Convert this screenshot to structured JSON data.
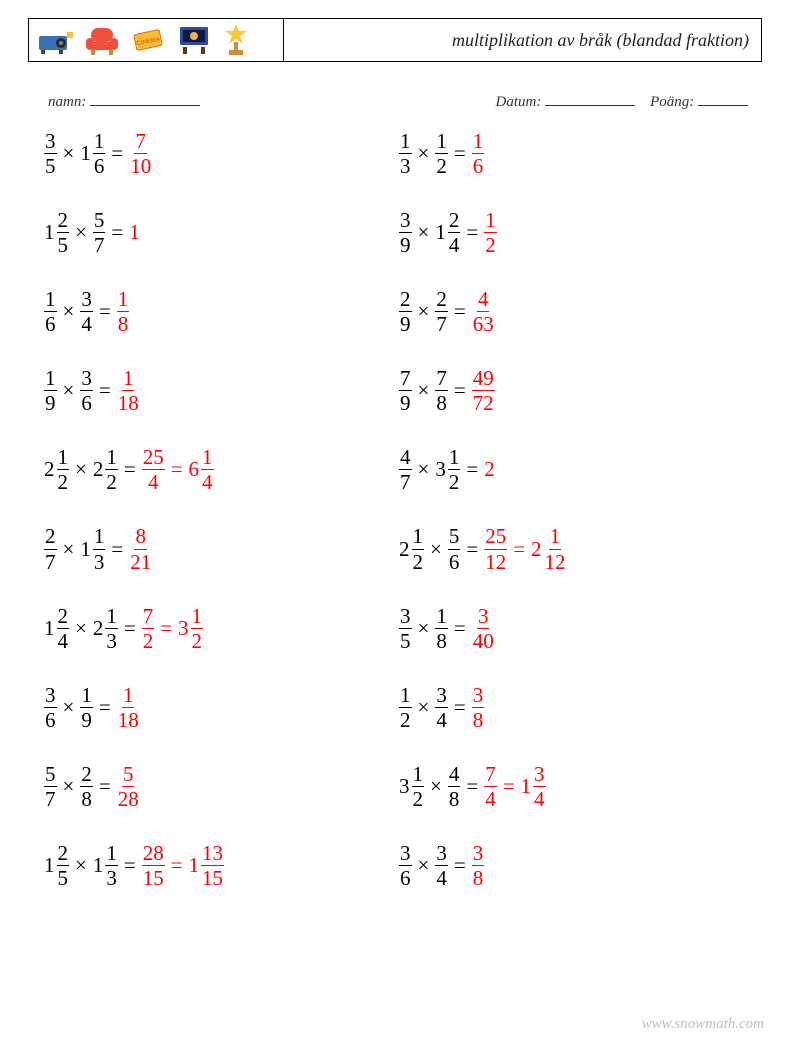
{
  "header": {
    "title": "multiplikation av bråk (blandad fraktion)",
    "title_fontsize": 18,
    "title_color": "#222222",
    "border_color": "#000000"
  },
  "icons": {
    "projector_body": "#3b6fb5",
    "projector_lens": "#2a2a2a",
    "sofa_red": "#f04e3e",
    "sofa_legs": "#c08a4a",
    "ticket_body": "#fdbf2d",
    "ticket_text": "#e0662a",
    "screen_frame": "#2f4aa0",
    "screen_inner": "#f6b042",
    "screen_legs": "#5a3a1a",
    "trophy_star": "#f8c93a",
    "trophy_base": "#d4883a"
  },
  "info": {
    "name_label": "namn:",
    "date_label": "Datum:",
    "score_label": "Poäng:",
    "name_underline_w": 110,
    "date_underline_w": 90,
    "score_underline_w": 50,
    "text_color": "#333333"
  },
  "style": {
    "problem_fontsize": 21,
    "answer_color": "#ff0000",
    "text_color": "#000000",
    "row_gap": 32,
    "background": "#ffffff"
  },
  "problems": {
    "left": [
      {
        "a": {
          "n": "3",
          "d": "5"
        },
        "b": {
          "w": "1",
          "n": "1",
          "d": "6"
        },
        "ans": [
          {
            "n": "7",
            "d": "10"
          }
        ]
      },
      {
        "a": {
          "w": "1",
          "n": "2",
          "d": "5"
        },
        "b": {
          "n": "5",
          "d": "7"
        },
        "ans": [
          {
            "int": "1"
          }
        ]
      },
      {
        "a": {
          "n": "1",
          "d": "6"
        },
        "b": {
          "n": "3",
          "d": "4"
        },
        "ans": [
          {
            "n": "1",
            "d": "8"
          }
        ]
      },
      {
        "a": {
          "n": "1",
          "d": "9"
        },
        "b": {
          "n": "3",
          "d": "6"
        },
        "ans": [
          {
            "n": "1",
            "d": "18"
          }
        ]
      },
      {
        "a": {
          "w": "2",
          "n": "1",
          "d": "2"
        },
        "b": {
          "w": "2",
          "n": "1",
          "d": "2"
        },
        "ans": [
          {
            "n": "25",
            "d": "4"
          },
          {
            "w": "6",
            "n": "1",
            "d": "4"
          }
        ]
      },
      {
        "a": {
          "n": "2",
          "d": "7"
        },
        "b": {
          "w": "1",
          "n": "1",
          "d": "3"
        },
        "ans": [
          {
            "n": "8",
            "d": "21"
          }
        ]
      },
      {
        "a": {
          "w": "1",
          "n": "2",
          "d": "4"
        },
        "b": {
          "w": "2",
          "n": "1",
          "d": "3"
        },
        "ans": [
          {
            "n": "7",
            "d": "2"
          },
          {
            "w": "3",
            "n": "1",
            "d": "2"
          }
        ]
      },
      {
        "a": {
          "n": "3",
          "d": "6"
        },
        "b": {
          "n": "1",
          "d": "9"
        },
        "ans": [
          {
            "n": "1",
            "d": "18"
          }
        ]
      },
      {
        "a": {
          "n": "5",
          "d": "7"
        },
        "b": {
          "n": "2",
          "d": "8"
        },
        "ans": [
          {
            "n": "5",
            "d": "28"
          }
        ]
      },
      {
        "a": {
          "w": "1",
          "n": "2",
          "d": "5"
        },
        "b": {
          "w": "1",
          "n": "1",
          "d": "3"
        },
        "ans": [
          {
            "n": "28",
            "d": "15"
          },
          {
            "w": "1",
            "n": "13",
            "d": "15"
          }
        ]
      }
    ],
    "right": [
      {
        "a": {
          "n": "1",
          "d": "3"
        },
        "b": {
          "n": "1",
          "d": "2"
        },
        "ans": [
          {
            "n": "1",
            "d": "6"
          }
        ]
      },
      {
        "a": {
          "n": "3",
          "d": "9"
        },
        "b": {
          "w": "1",
          "n": "2",
          "d": "4"
        },
        "ans": [
          {
            "n": "1",
            "d": "2"
          }
        ]
      },
      {
        "a": {
          "n": "2",
          "d": "9"
        },
        "b": {
          "n": "2",
          "d": "7"
        },
        "ans": [
          {
            "n": "4",
            "d": "63"
          }
        ]
      },
      {
        "a": {
          "n": "7",
          "d": "9"
        },
        "b": {
          "n": "7",
          "d": "8"
        },
        "ans": [
          {
            "n": "49",
            "d": "72"
          }
        ]
      },
      {
        "a": {
          "n": "4",
          "d": "7"
        },
        "b": {
          "w": "3",
          "n": "1",
          "d": "2"
        },
        "ans": [
          {
            "int": "2"
          }
        ]
      },
      {
        "a": {
          "w": "2",
          "n": "1",
          "d": "2"
        },
        "b": {
          "n": "5",
          "d": "6"
        },
        "ans": [
          {
            "n": "25",
            "d": "12"
          },
          {
            "w": "2",
            "n": "1",
            "d": "12"
          }
        ]
      },
      {
        "a": {
          "n": "3",
          "d": "5"
        },
        "b": {
          "n": "1",
          "d": "8"
        },
        "ans": [
          {
            "n": "3",
            "d": "40"
          }
        ]
      },
      {
        "a": {
          "n": "1",
          "d": "2"
        },
        "b": {
          "n": "3",
          "d": "4"
        },
        "ans": [
          {
            "n": "3",
            "d": "8"
          }
        ]
      },
      {
        "a": {
          "w": "3",
          "n": "1",
          "d": "2"
        },
        "b": {
          "n": "4",
          "d": "8"
        },
        "ans": [
          {
            "n": "7",
            "d": "4"
          },
          {
            "w": "1",
            "n": "3",
            "d": "4"
          }
        ]
      },
      {
        "a": {
          "n": "3",
          "d": "6"
        },
        "b": {
          "n": "3",
          "d": "4"
        },
        "ans": [
          {
            "n": "3",
            "d": "8"
          }
        ]
      }
    ]
  },
  "watermark": "www.snowmath.com",
  "watermark_color": "#bdbdbd"
}
